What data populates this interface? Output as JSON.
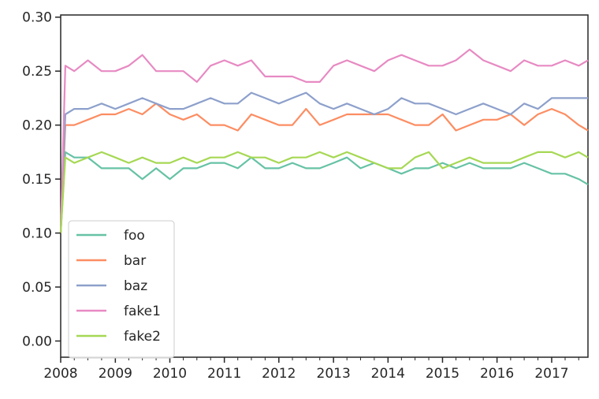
{
  "chart_data": {
    "type": "line",
    "title": "",
    "xlabel": "",
    "ylabel": "",
    "xlim": [
      "2008-01-01",
      "2017-09-01"
    ],
    "ylim": [
      -0.015,
      0.302
    ],
    "x_ticks": [
      "2008",
      "2009",
      "2010",
      "2011",
      "2012",
      "2013",
      "2014",
      "2015",
      "2016",
      "2017"
    ],
    "y_ticks": [
      "0.00",
      "0.05",
      "0.10",
      "0.15",
      "0.20",
      "0.25",
      "0.30"
    ],
    "grid": false,
    "legend_position": "lower-left",
    "x": [
      "2008-01-01",
      "2008-02-01",
      "2008-04-01",
      "2008-07-01",
      "2008-10-01",
      "2009-01-01",
      "2009-04-01",
      "2009-07-01",
      "2009-10-01",
      "2010-01-01",
      "2010-04-01",
      "2010-07-01",
      "2010-10-01",
      "2011-01-01",
      "2011-04-01",
      "2011-07-01",
      "2011-10-01",
      "2012-01-01",
      "2012-04-01",
      "2012-07-01",
      "2012-10-01",
      "2013-01-01",
      "2013-04-01",
      "2013-07-01",
      "2013-10-01",
      "2014-01-01",
      "2014-04-01",
      "2014-07-01",
      "2014-10-01",
      "2015-01-01",
      "2015-04-01",
      "2015-07-01",
      "2015-10-01",
      "2016-01-01",
      "2016-04-01",
      "2016-07-01",
      "2016-10-01",
      "2017-01-01",
      "2017-04-01",
      "2017-07-01",
      "2017-09-01"
    ],
    "series": [
      {
        "name": "foo",
        "color": "#66c2a5",
        "values": [
          0.1,
          0.175,
          0.17,
          0.17,
          0.16,
          0.16,
          0.16,
          0.15,
          0.16,
          0.15,
          0.16,
          0.16,
          0.165,
          0.165,
          0.16,
          0.17,
          0.16,
          0.16,
          0.165,
          0.16,
          0.16,
          0.165,
          0.17,
          0.16,
          0.165,
          0.16,
          0.155,
          0.16,
          0.16,
          0.165,
          0.16,
          0.165,
          0.16,
          0.16,
          0.16,
          0.165,
          0.16,
          0.155,
          0.155,
          0.15,
          0.145
        ]
      },
      {
        "name": "bar",
        "color": "#fc8d62",
        "values": [
          0.1,
          0.2,
          0.2,
          0.205,
          0.21,
          0.21,
          0.215,
          0.21,
          0.22,
          0.21,
          0.205,
          0.21,
          0.2,
          0.2,
          0.195,
          0.21,
          0.205,
          0.2,
          0.2,
          0.215,
          0.2,
          0.205,
          0.21,
          0.21,
          0.21,
          0.21,
          0.205,
          0.2,
          0.2,
          0.21,
          0.195,
          0.2,
          0.205,
          0.205,
          0.21,
          0.2,
          0.21,
          0.215,
          0.21,
          0.2,
          0.195
        ]
      },
      {
        "name": "baz",
        "color": "#8da0cb",
        "values": [
          0.1,
          0.21,
          0.215,
          0.215,
          0.22,
          0.215,
          0.22,
          0.225,
          0.22,
          0.215,
          0.215,
          0.22,
          0.225,
          0.22,
          0.22,
          0.23,
          0.225,
          0.22,
          0.225,
          0.23,
          0.22,
          0.215,
          0.22,
          0.215,
          0.21,
          0.215,
          0.225,
          0.22,
          0.22,
          0.215,
          0.21,
          0.215,
          0.22,
          0.215,
          0.21,
          0.22,
          0.215,
          0.225,
          0.225,
          0.225,
          0.225
        ]
      },
      {
        "name": "fake1",
        "color": "#e78ac3",
        "values": [
          0.1,
          0.255,
          0.25,
          0.26,
          0.25,
          0.25,
          0.255,
          0.265,
          0.25,
          0.25,
          0.25,
          0.24,
          0.255,
          0.26,
          0.255,
          0.26,
          0.245,
          0.245,
          0.245,
          0.24,
          0.24,
          0.255,
          0.26,
          0.255,
          0.25,
          0.26,
          0.265,
          0.26,
          0.255,
          0.255,
          0.26,
          0.27,
          0.26,
          0.255,
          0.25,
          0.26,
          0.255,
          0.255,
          0.26,
          0.255,
          0.26
        ]
      },
      {
        "name": "fake2",
        "color": "#a6d854",
        "values": [
          0.1,
          0.17,
          0.165,
          0.17,
          0.175,
          0.17,
          0.165,
          0.17,
          0.165,
          0.165,
          0.17,
          0.165,
          0.17,
          0.17,
          0.175,
          0.17,
          0.17,
          0.165,
          0.17,
          0.17,
          0.175,
          0.17,
          0.175,
          0.17,
          0.165,
          0.16,
          0.16,
          0.17,
          0.175,
          0.16,
          0.165,
          0.17,
          0.165,
          0.165,
          0.165,
          0.17,
          0.175,
          0.175,
          0.17,
          0.175,
          0.17
        ]
      }
    ]
  }
}
